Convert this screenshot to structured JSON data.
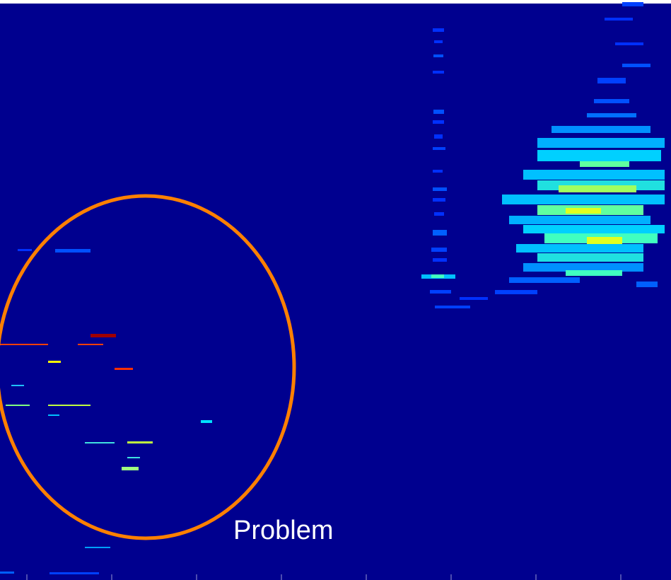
{
  "annotation": {
    "label": "Problem"
  }
}
